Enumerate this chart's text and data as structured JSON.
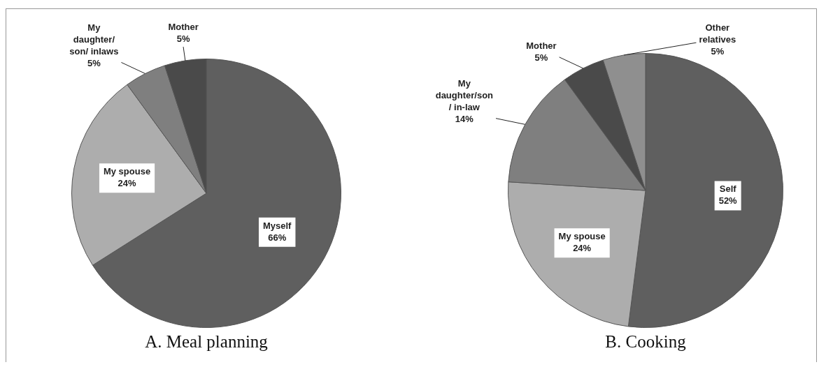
{
  "chart_data": [
    {
      "type": "pie",
      "title": "A. Meal planning",
      "categories": [
        "Myself",
        "My spouse",
        "My daughter/ son/ inlaws",
        "Mother"
      ],
      "values": [
        66,
        24,
        5,
        5
      ],
      "value_labels": [
        "66%",
        "24%",
        "5%",
        "5%"
      ],
      "colors": [
        "#5f5f5f",
        "#adadad",
        "#7f7f7f",
        "#4a4a4a"
      ]
    },
    {
      "type": "pie",
      "title": "B. Cooking",
      "categories": [
        "Self",
        "My spouse",
        "My daughter/son / in-law",
        "Mother",
        "Other relatives"
      ],
      "values": [
        52,
        24,
        14,
        5,
        5
      ],
      "value_labels": [
        "52%",
        "24%",
        "14%",
        "5%",
        "5%"
      ],
      "colors": [
        "#5f5f5f",
        "#adadad",
        "#7f7f7f",
        "#4a4a4a",
        "#8f8f8f"
      ]
    }
  ]
}
